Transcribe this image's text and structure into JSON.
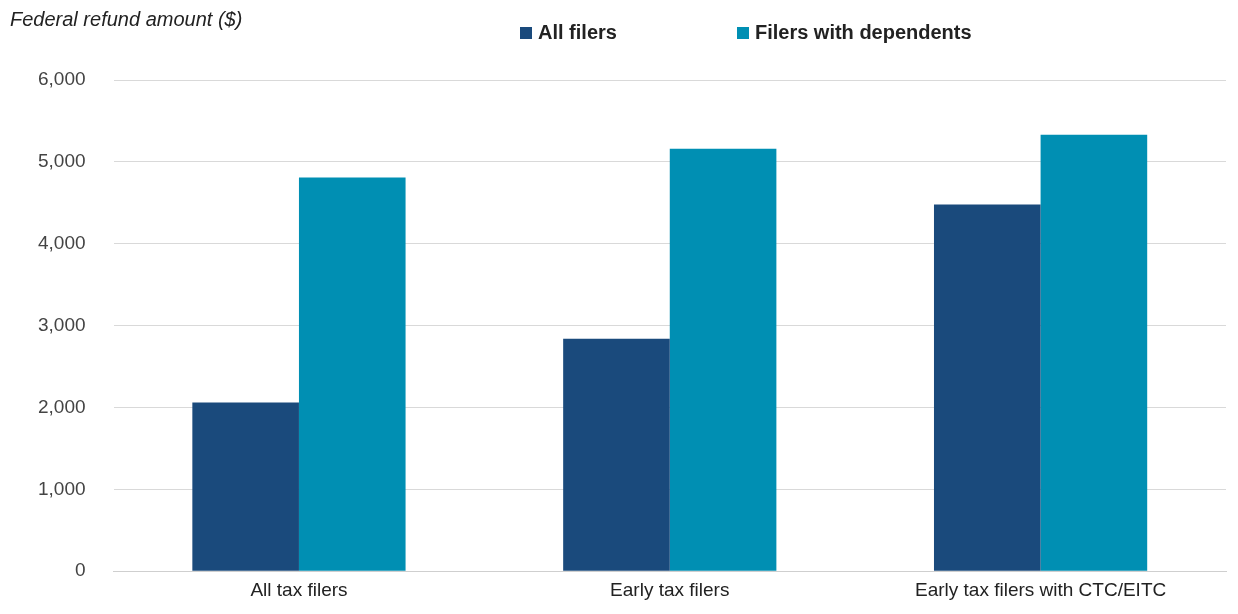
{
  "chart_data": {
    "type": "bar",
    "ylabel": "Federal refund amount ($)",
    "categories": [
      "All tax filers",
      "Early tax filers",
      "Early tax filers with CTC/EITC"
    ],
    "series": [
      {
        "name": "All filers",
        "color": "#1a4a7c",
        "values": [
          2060,
          2840,
          4480
        ]
      },
      {
        "name": "Filers with dependents",
        "color": "#008fb3",
        "values": [
          4810,
          5160,
          5330
        ]
      }
    ],
    "ylim": [
      0,
      6000
    ],
    "yticks": [
      {
        "value": 0,
        "label": "0"
      },
      {
        "value": 1000,
        "label": "1,000"
      },
      {
        "value": 2000,
        "label": "2,000"
      },
      {
        "value": 3000,
        "label": "3,000"
      },
      {
        "value": 4000,
        "label": "4,000"
      },
      {
        "value": 5000,
        "label": "5,000"
      },
      {
        "value": 6000,
        "label": "6,000"
      }
    ],
    "grid": "y",
    "legend": "top"
  }
}
